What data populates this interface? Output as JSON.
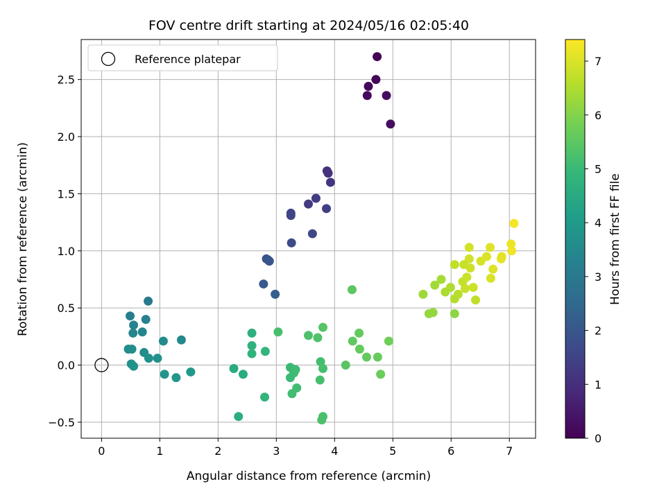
{
  "chart_data": {
    "type": "scatter",
    "title": "FOV centre drift starting at 2024/05/16 02:05:40",
    "xlabel": "Angular distance from reference (arcmin)",
    "ylabel": "Rotation from reference (arcmin)",
    "xlim": [
      -0.35,
      7.45
    ],
    "ylim": [
      -0.64,
      2.85
    ],
    "xticks": [
      0,
      1,
      2,
      3,
      4,
      5,
      6,
      7
    ],
    "xtick_labels": [
      "0",
      "1",
      "2",
      "3",
      "4",
      "5",
      "6",
      "7"
    ],
    "yticks": [
      -0.5,
      0.0,
      0.5,
      1.0,
      1.5,
      2.0,
      2.5
    ],
    "ytick_labels": [
      "−0.5",
      "0.0",
      "0.5",
      "1.0",
      "1.5",
      "2.0",
      "2.5"
    ],
    "grid": true,
    "legend": {
      "location": "upper-left",
      "entries": [
        "Reference platepar"
      ]
    },
    "reference_point": {
      "x": 0,
      "y": 0,
      "marker": "open-circle"
    },
    "colorbar": {
      "label": "Hours from first FF file",
      "range": [
        0,
        7.4
      ],
      "ticks": [
        0,
        1,
        2,
        3,
        4,
        5,
        6,
        7
      ],
      "tick_labels": [
        "0",
        "1",
        "2",
        "3",
        "4",
        "5",
        "6",
        "7"
      ],
      "colormap": "viridis",
      "colormap_stops": [
        "#440154",
        "#482878",
        "#3e4989",
        "#31688e",
        "#26828e",
        "#1f9e89",
        "#35b779",
        "#6ece58",
        "#b5de2b",
        "#fde725"
      ]
    },
    "points": [
      {
        "x": 4.73,
        "y": 2.7,
        "c": 0.02
      },
      {
        "x": 4.71,
        "y": 2.5,
        "c": 0.1
      },
      {
        "x": 4.58,
        "y": 2.44,
        "c": 0.15
      },
      {
        "x": 4.56,
        "y": 2.36,
        "c": 0.2
      },
      {
        "x": 4.89,
        "y": 2.36,
        "c": 0.25
      },
      {
        "x": 4.96,
        "y": 2.11,
        "c": 0.3
      },
      {
        "x": 3.87,
        "y": 1.7,
        "c": 1.05
      },
      {
        "x": 3.89,
        "y": 1.68,
        "c": 1.1
      },
      {
        "x": 3.93,
        "y": 1.6,
        "c": 1.15
      },
      {
        "x": 3.55,
        "y": 1.41,
        "c": 1.3
      },
      {
        "x": 3.68,
        "y": 1.46,
        "c": 1.35
      },
      {
        "x": 3.86,
        "y": 1.37,
        "c": 1.4
      },
      {
        "x": 3.25,
        "y": 1.33,
        "c": 1.5
      },
      {
        "x": 3.25,
        "y": 1.31,
        "c": 1.55
      },
      {
        "x": 3.62,
        "y": 1.15,
        "c": 1.6
      },
      {
        "x": 3.26,
        "y": 1.07,
        "c": 1.7
      },
      {
        "x": 2.83,
        "y": 0.93,
        "c": 1.9
      },
      {
        "x": 2.86,
        "y": 0.92,
        "c": 1.95
      },
      {
        "x": 2.88,
        "y": 0.91,
        "c": 2.0
      },
      {
        "x": 2.78,
        "y": 0.71,
        "c": 2.1
      },
      {
        "x": 2.98,
        "y": 0.62,
        "c": 2.2
      },
      {
        "x": 0.8,
        "y": 0.56,
        "c": 3.0
      },
      {
        "x": 0.49,
        "y": 0.43,
        "c": 3.2
      },
      {
        "x": 0.76,
        "y": 0.4,
        "c": 3.25
      },
      {
        "x": 0.55,
        "y": 0.35,
        "c": 3.3
      },
      {
        "x": 0.7,
        "y": 0.29,
        "c": 3.35
      },
      {
        "x": 0.54,
        "y": 0.28,
        "c": 3.4
      },
      {
        "x": 1.37,
        "y": 0.22,
        "c": 3.5
      },
      {
        "x": 1.06,
        "y": 0.21,
        "c": 3.55
      },
      {
        "x": 0.46,
        "y": 0.14,
        "c": 3.6
      },
      {
        "x": 0.52,
        "y": 0.14,
        "c": 3.62
      },
      {
        "x": 0.73,
        "y": 0.11,
        "c": 3.65
      },
      {
        "x": 0.81,
        "y": 0.06,
        "c": 3.7
      },
      {
        "x": 0.96,
        "y": 0.06,
        "c": 3.72
      },
      {
        "x": 0.51,
        "y": 0.01,
        "c": 3.75
      },
      {
        "x": 0.55,
        "y": -0.01,
        "c": 3.78
      },
      {
        "x": 1.08,
        "y": -0.08,
        "c": 3.85
      },
      {
        "x": 1.28,
        "y": -0.11,
        "c": 3.9
      },
      {
        "x": 1.53,
        "y": -0.06,
        "c": 3.95
      },
      {
        "x": 2.27,
        "y": -0.03,
        "c": 4.5
      },
      {
        "x": 2.43,
        "y": -0.08,
        "c": 4.55
      },
      {
        "x": 2.35,
        "y": -0.45,
        "c": 4.6
      },
      {
        "x": 2.58,
        "y": 0.28,
        "c": 4.7
      },
      {
        "x": 2.58,
        "y": 0.17,
        "c": 4.75
      },
      {
        "x": 2.58,
        "y": 0.1,
        "c": 4.8
      },
      {
        "x": 2.81,
        "y": 0.12,
        "c": 4.82
      },
      {
        "x": 2.8,
        "y": -0.28,
        "c": 4.85
      },
      {
        "x": 3.03,
        "y": 0.29,
        "c": 5.2
      },
      {
        "x": 3.24,
        "y": -0.02,
        "c": 5.0
      },
      {
        "x": 3.24,
        "y": -0.11,
        "c": 5.02
      },
      {
        "x": 3.3,
        "y": -0.07,
        "c": 5.05
      },
      {
        "x": 3.33,
        "y": -0.04,
        "c": 5.08
      },
      {
        "x": 3.27,
        "y": -0.25,
        "c": 5.1
      },
      {
        "x": 3.35,
        "y": -0.2,
        "c": 5.12
      },
      {
        "x": 3.55,
        "y": 0.26,
        "c": 5.3
      },
      {
        "x": 3.71,
        "y": 0.24,
        "c": 5.32
      },
      {
        "x": 3.8,
        "y": 0.33,
        "c": 5.4
      },
      {
        "x": 3.76,
        "y": 0.03,
        "c": 5.15
      },
      {
        "x": 3.8,
        "y": -0.03,
        "c": 5.18
      },
      {
        "x": 3.75,
        "y": -0.13,
        "c": 5.2
      },
      {
        "x": 3.8,
        "y": -0.45,
        "c": 5.22
      },
      {
        "x": 3.78,
        "y": -0.48,
        "c": 5.25
      },
      {
        "x": 4.3,
        "y": 0.66,
        "c": 5.5
      },
      {
        "x": 4.19,
        "y": 0.0,
        "c": 5.45
      },
      {
        "x": 4.31,
        "y": 0.21,
        "c": 5.55
      },
      {
        "x": 4.42,
        "y": 0.28,
        "c": 5.58
      },
      {
        "x": 4.43,
        "y": 0.14,
        "c": 5.6
      },
      {
        "x": 4.55,
        "y": 0.07,
        "c": 5.62
      },
      {
        "x": 4.74,
        "y": 0.07,
        "c": 5.65
      },
      {
        "x": 4.79,
        "y": -0.08,
        "c": 5.68
      },
      {
        "x": 4.93,
        "y": 0.21,
        "c": 5.75
      },
      {
        "x": 5.52,
        "y": 0.62,
        "c": 6.3
      },
      {
        "x": 5.62,
        "y": 0.45,
        "c": 6.2
      },
      {
        "x": 5.69,
        "y": 0.46,
        "c": 6.22
      },
      {
        "x": 5.72,
        "y": 0.7,
        "c": 6.35
      },
      {
        "x": 5.83,
        "y": 0.75,
        "c": 6.4
      },
      {
        "x": 5.9,
        "y": 0.64,
        "c": 6.45
      },
      {
        "x": 5.99,
        "y": 0.68,
        "c": 6.5
      },
      {
        "x": 6.06,
        "y": 0.45,
        "c": 6.1
      },
      {
        "x": 6.06,
        "y": 0.88,
        "c": 6.7
      },
      {
        "x": 6.06,
        "y": 0.58,
        "c": 6.55
      },
      {
        "x": 6.12,
        "y": 0.62,
        "c": 6.6
      },
      {
        "x": 6.2,
        "y": 0.73,
        "c": 6.75
      },
      {
        "x": 6.22,
        "y": 0.88,
        "c": 6.8
      },
      {
        "x": 6.24,
        "y": 0.67,
        "c": 6.78
      },
      {
        "x": 6.27,
        "y": 0.77,
        "c": 6.82
      },
      {
        "x": 6.31,
        "y": 1.03,
        "c": 6.9
      },
      {
        "x": 6.31,
        "y": 0.93,
        "c": 6.88
      },
      {
        "x": 6.33,
        "y": 0.85,
        "c": 6.86
      },
      {
        "x": 6.38,
        "y": 0.68,
        "c": 6.84
      },
      {
        "x": 6.42,
        "y": 0.57,
        "c": 6.7
      },
      {
        "x": 6.51,
        "y": 0.91,
        "c": 6.95
      },
      {
        "x": 6.61,
        "y": 0.95,
        "c": 7.0
      },
      {
        "x": 6.67,
        "y": 1.03,
        "c": 7.05
      },
      {
        "x": 6.68,
        "y": 0.76,
        "c": 6.98
      },
      {
        "x": 6.72,
        "y": 0.84,
        "c": 7.02
      },
      {
        "x": 6.86,
        "y": 0.93,
        "c": 7.1
      },
      {
        "x": 6.87,
        "y": 0.95,
        "c": 7.12
      },
      {
        "x": 7.03,
        "y": 1.06,
        "c": 7.2
      },
      {
        "x": 7.04,
        "y": 1.0,
        "c": 7.22
      },
      {
        "x": 7.08,
        "y": 1.24,
        "c": 7.3
      }
    ]
  }
}
